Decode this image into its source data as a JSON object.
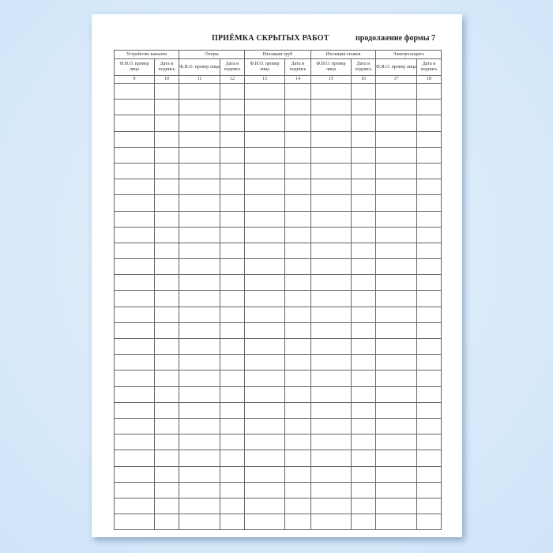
{
  "document": {
    "title": "ПРИЁМКА СКРЫТЫХ РАБОТ",
    "continuation": "продолжение формы 7",
    "groups": [
      "Устройство каналов",
      "Опоры",
      "Изоляция труб",
      "Изоляция стыков",
      "Электрозащита"
    ],
    "subheaders": [
      "Ф.И.О. провер лица",
      "Дата и подпись"
    ],
    "column_numbers": [
      "9",
      "10",
      "11",
      "12",
      "13",
      "14",
      "15",
      "16",
      "17",
      "18"
    ]
  },
  "colors": {
    "background": "#d6e9fb",
    "grid": "#666666"
  }
}
